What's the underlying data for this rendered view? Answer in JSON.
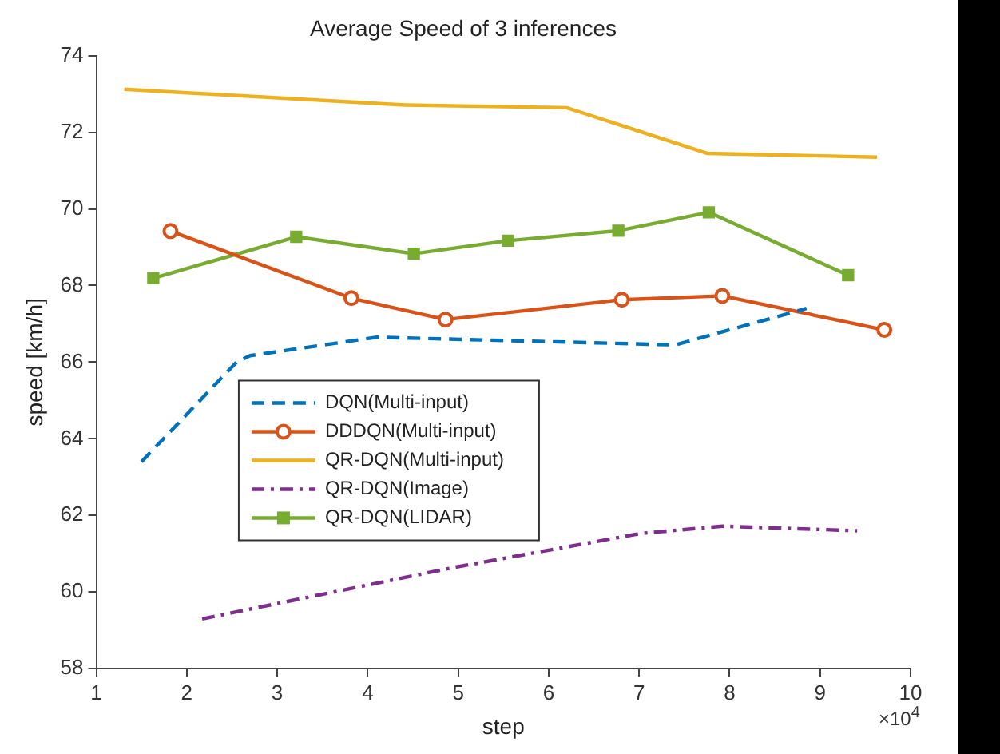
{
  "chart_data": {
    "type": "line",
    "title": "Average Speed of 3 inferences",
    "xlabel": "step",
    "ylabel": "speed [km/h]",
    "annotations": [
      "×10$^{4}$"
    ],
    "xlim": [
      1,
      10
    ],
    "xticks": [
      1,
      2,
      3,
      4,
      5,
      6,
      7,
      8,
      9,
      10
    ],
    "ylim": [
      58,
      74
    ],
    "yticks": [
      58,
      60,
      62,
      64,
      66,
      68,
      70,
      72,
      74
    ],
    "grid": false,
    "legend": "center left",
    "series": [
      {
        "name": "DQN(Multi-input)",
        "color": "#0072bd",
        "line_style": "dashed",
        "marker": "none",
        "x": [
          1.5,
          2.55,
          2.7,
          4.1,
          7.4,
          8.85
        ],
        "values": [
          63.4,
          66.0,
          66.17,
          66.65,
          66.45,
          67.4
        ]
      },
      {
        "name": "DDDQN(Multi-input)",
        "color": "#d95319",
        "line_style": "solid",
        "marker": "circle",
        "x": [
          1.82,
          3.82,
          4.86,
          6.81,
          7.92,
          9.71
        ],
        "values": [
          69.42,
          67.67,
          67.11,
          67.63,
          67.73,
          66.84
        ]
      },
      {
        "name": "QR-DQN(Multi-input)",
        "color": "#edb120",
        "line_style": "solid",
        "marker": "none",
        "x": [
          1.31,
          4.41,
          6.2,
          7.75,
          9.63
        ],
        "values": [
          73.12,
          72.71,
          72.64,
          71.45,
          71.35
        ]
      },
      {
        "name": "QR-DQN(Image)",
        "color": "#7e2f8e",
        "line_style": "dashdot",
        "marker": "none",
        "x": [
          2.17,
          4.97,
          7.02,
          7.92,
          9.41
        ],
        "values": [
          59.3,
          60.65,
          61.53,
          61.72,
          61.6
        ]
      },
      {
        "name": "QR-DQN(LIDAR)",
        "color": "#77ac30",
        "line_style": "solid",
        "marker": "square",
        "x": [
          1.63,
          3.21,
          4.51,
          5.55,
          6.77,
          7.77,
          9.31
        ],
        "values": [
          68.19,
          69.27,
          68.83,
          69.17,
          69.43,
          69.91,
          68.27
        ]
      }
    ]
  }
}
